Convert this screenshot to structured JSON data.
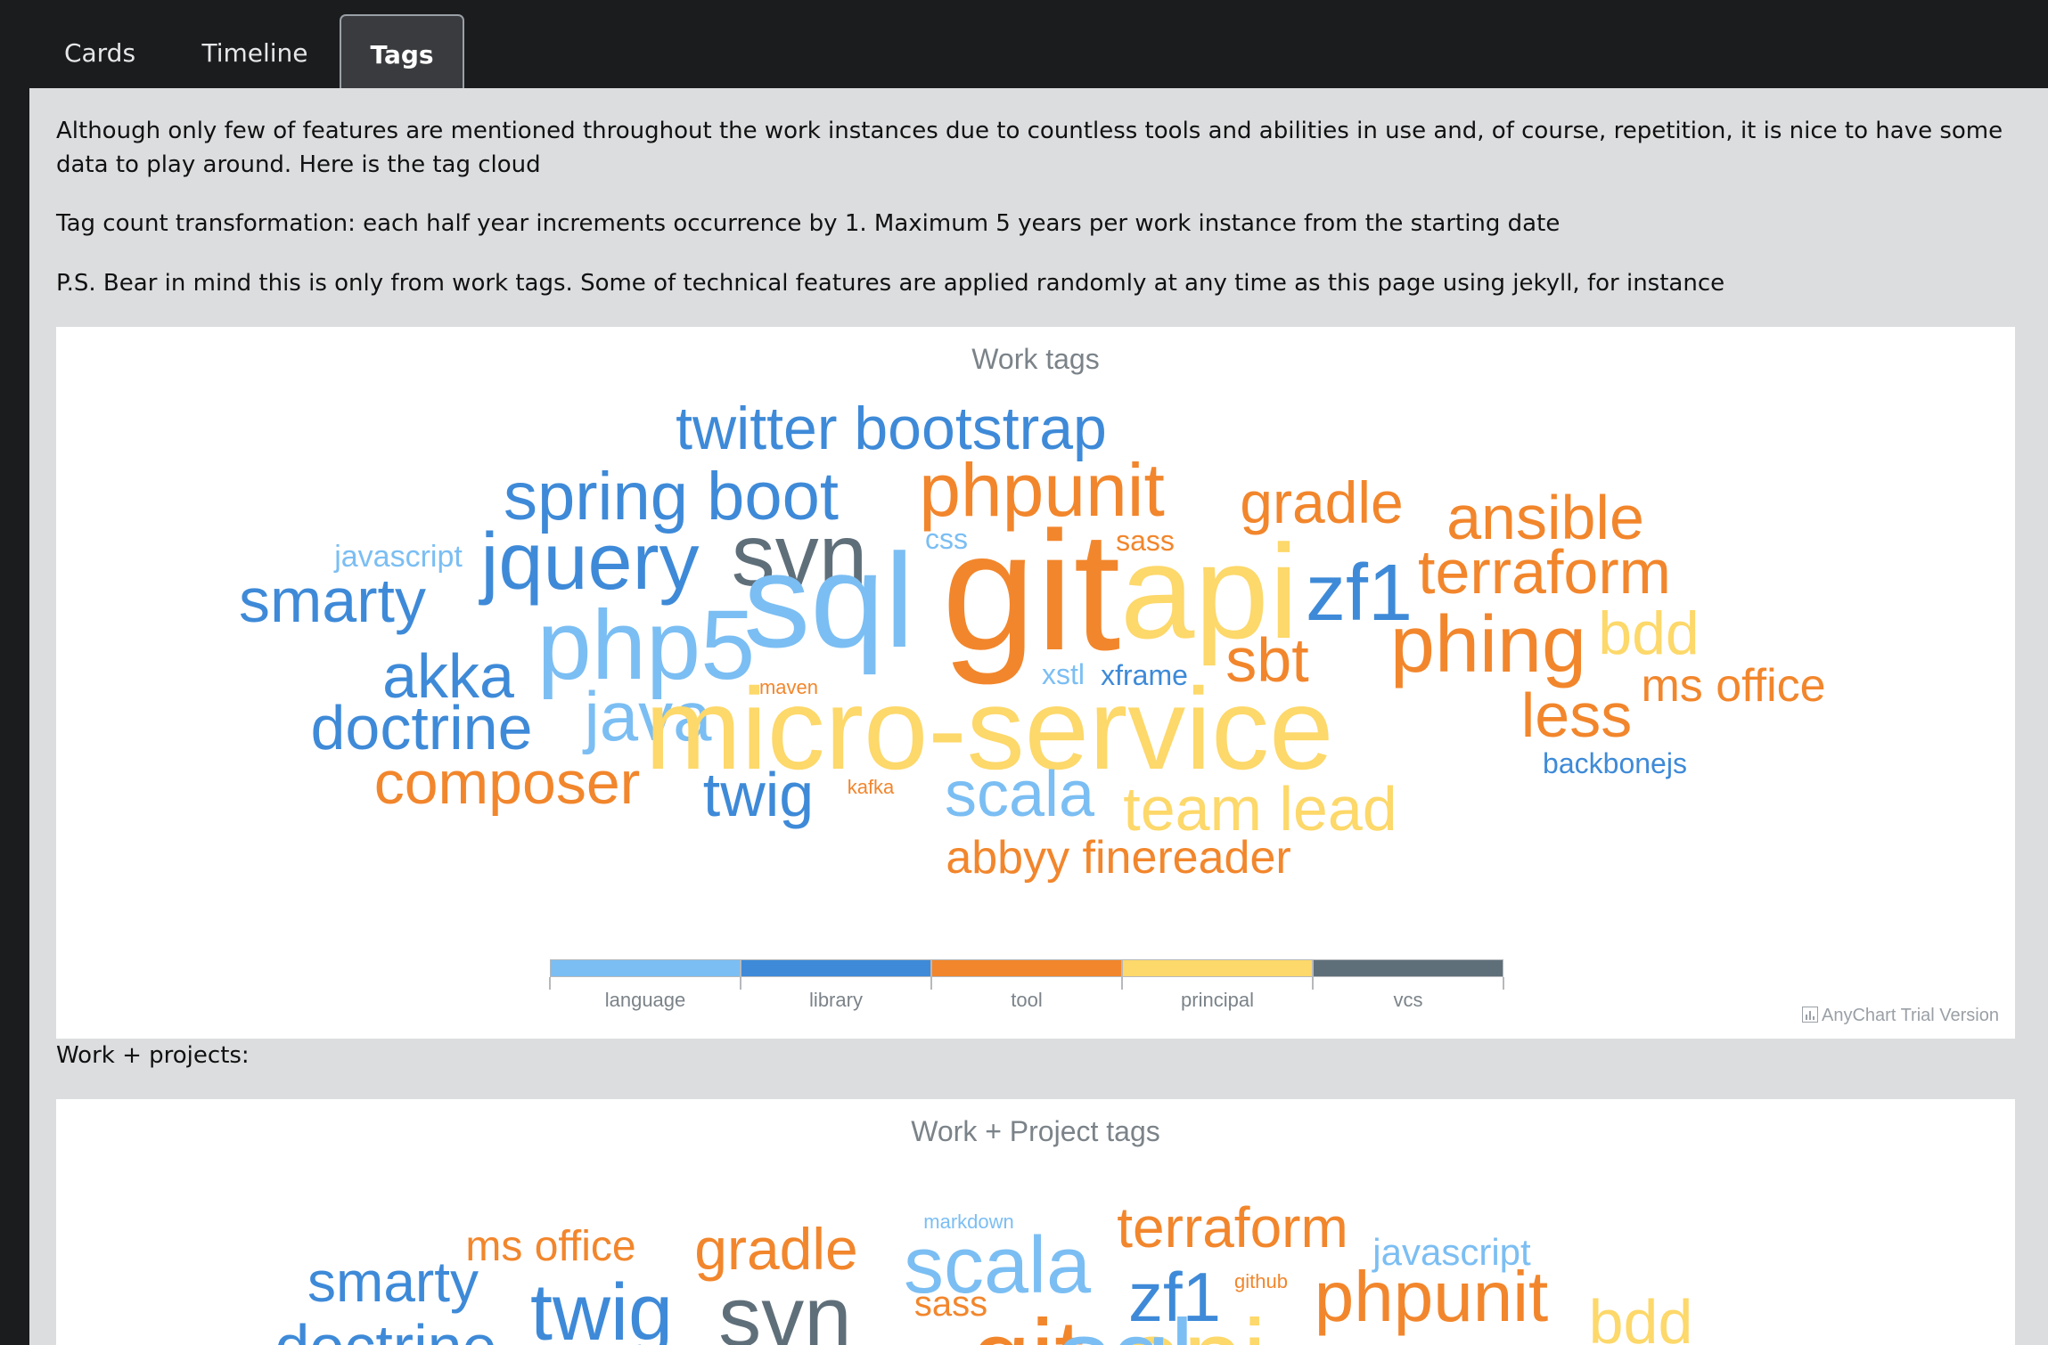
{
  "tabs": [
    {
      "label": "Cards",
      "active": false
    },
    {
      "label": "Timeline",
      "active": false
    },
    {
      "label": "Tags",
      "active": true
    }
  ],
  "intro": {
    "p1": "Although only few of features are mentioned throughout the work instances due to countless tools and abilities in use and, of course, repetition, it is nice to have some data to play around. Here is the tag cloud",
    "p2": "Tag count transformation: each half year increments occurrence by 1. Maximum 5 years per work instance from the starting date",
    "p3": "P.S. Bear in mind this is only from work tags. Some of technical features are applied randomly at any time as this page using jekyll, for instance"
  },
  "colors": {
    "language": "#7bbef3",
    "library": "#3e8ad8",
    "tool": "#f2862c",
    "principal": "#fdd86a",
    "vcs": "#5f6f7a"
  },
  "work_cloud": {
    "title": "Work tags",
    "legend": [
      "language",
      "library",
      "tool",
      "principal",
      "vcs"
    ],
    "credit": "AnyChart Trial Version",
    "tags": [
      {
        "text": "twitter bootstrap",
        "category": "library"
      },
      {
        "text": "spring boot",
        "category": "library"
      },
      {
        "text": "phpunit",
        "category": "tool"
      },
      {
        "text": "gradle",
        "category": "tool"
      },
      {
        "text": "ansible",
        "category": "tool"
      },
      {
        "text": "javascript",
        "category": "language"
      },
      {
        "text": "jquery",
        "category": "library"
      },
      {
        "text": "svn",
        "category": "vcs"
      },
      {
        "text": "css",
        "category": "language"
      },
      {
        "text": "sass",
        "category": "tool"
      },
      {
        "text": "terraform",
        "category": "tool"
      },
      {
        "text": "smarty",
        "category": "library"
      },
      {
        "text": "sql",
        "category": "language"
      },
      {
        "text": "git",
        "category": "tool"
      },
      {
        "text": "api",
        "category": "principal"
      },
      {
        "text": "zf1",
        "category": "library"
      },
      {
        "text": "phing",
        "category": "tool"
      },
      {
        "text": "bdd",
        "category": "principal"
      },
      {
        "text": "akka",
        "category": "library"
      },
      {
        "text": "php5",
        "category": "language"
      },
      {
        "text": "maven",
        "category": "tool"
      },
      {
        "text": "xstl",
        "category": "language"
      },
      {
        "text": "xframe",
        "category": "library"
      },
      {
        "text": "sbt",
        "category": "tool"
      },
      {
        "text": "ms office",
        "category": "tool"
      },
      {
        "text": "doctrine",
        "category": "library"
      },
      {
        "text": "java",
        "category": "language"
      },
      {
        "text": "micro-service",
        "category": "principal"
      },
      {
        "text": "less",
        "category": "tool"
      },
      {
        "text": "backbonejs",
        "category": "library"
      },
      {
        "text": "composer",
        "category": "tool"
      },
      {
        "text": "twig",
        "category": "library"
      },
      {
        "text": "kafka",
        "category": "tool"
      },
      {
        "text": "scala",
        "category": "language"
      },
      {
        "text": "team lead",
        "category": "principal"
      },
      {
        "text": "abbyy finereader",
        "category": "tool"
      }
    ]
  },
  "projects_label": "Work + projects:",
  "project_cloud": {
    "title": "Work + Project tags",
    "tags": [
      {
        "text": "markdown",
        "category": "language"
      },
      {
        "text": "terraform",
        "category": "tool"
      },
      {
        "text": "ms office",
        "category": "tool"
      },
      {
        "text": "gradle",
        "category": "tool"
      },
      {
        "text": "scala",
        "category": "language"
      },
      {
        "text": "javascript",
        "category": "language"
      },
      {
        "text": "smarty",
        "category": "library"
      },
      {
        "text": "github",
        "category": "tool"
      },
      {
        "text": "twig",
        "category": "library"
      },
      {
        "text": "svn",
        "category": "vcs"
      },
      {
        "text": "zf1",
        "category": "library"
      },
      {
        "text": "phpunit",
        "category": "tool"
      },
      {
        "text": "sass",
        "category": "tool"
      },
      {
        "text": "bdd",
        "category": "principal"
      },
      {
        "text": "doctrine",
        "category": "library"
      },
      {
        "text": "git",
        "category": "tool"
      },
      {
        "text": "api",
        "category": "principal"
      },
      {
        "text": "sql",
        "category": "language"
      }
    ]
  }
}
